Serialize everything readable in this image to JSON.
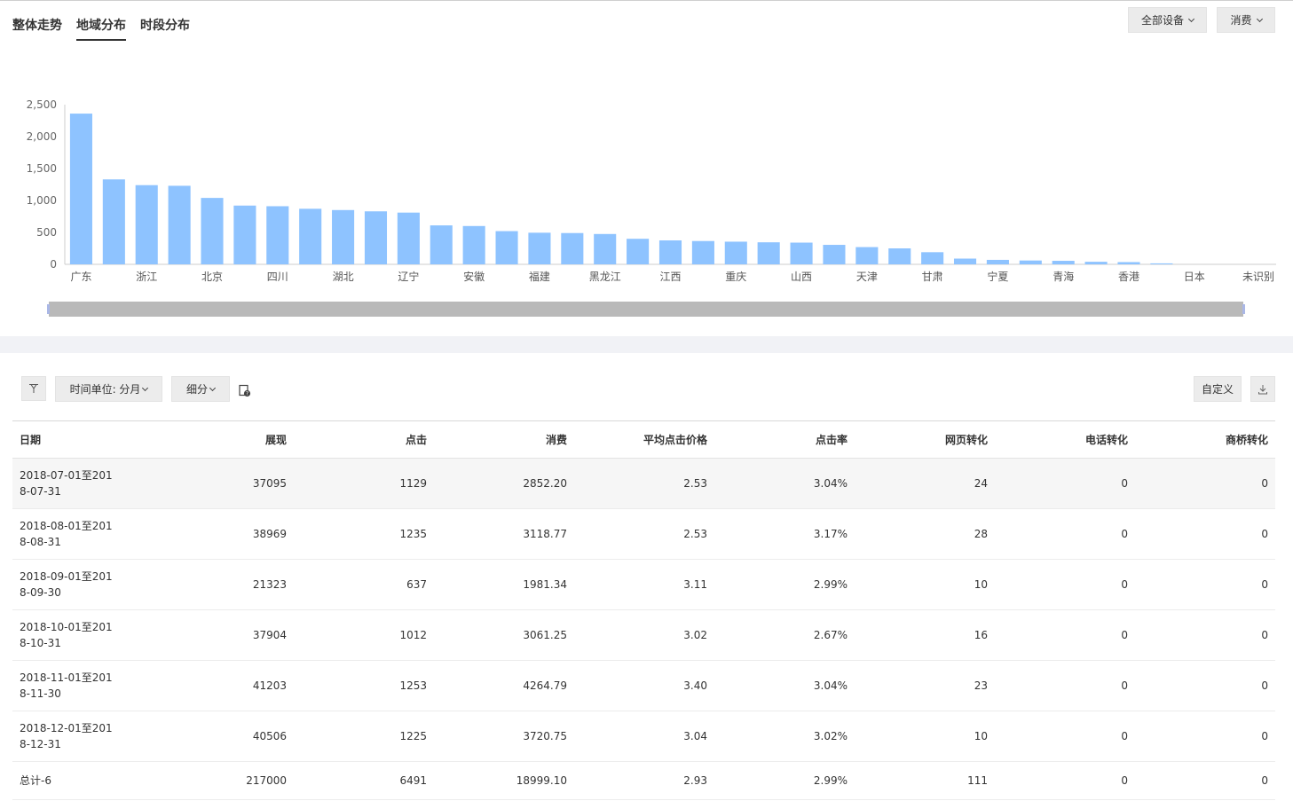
{
  "tabs": [
    {
      "label": "整体走势"
    },
    {
      "label": "地域分布"
    },
    {
      "label": "时段分布"
    }
  ],
  "filters": {
    "device_label": "全部设备",
    "metric_label": "消费"
  },
  "chart_data": {
    "type": "bar",
    "color": "#8ec3ff",
    "ylim": [
      0,
      2500
    ],
    "yticks": [
      "0",
      "500",
      "1,000",
      "1,500",
      "2,000",
      "2,500"
    ],
    "ytick_values": [
      0,
      500,
      1000,
      1500,
      2000,
      2500
    ],
    "x_labels_shown": [
      "广东",
      "浙江",
      "北京",
      "四川",
      "湖北",
      "辽宁",
      "安徽",
      "福建",
      "黑龙江",
      "江西",
      "重庆",
      "山西",
      "天津",
      "甘肃",
      "宁夏",
      "青海",
      "香港",
      "日本",
      "未识别"
    ],
    "values": [
      2360,
      1330,
      1240,
      1230,
      1040,
      920,
      910,
      870,
      850,
      830,
      810,
      610,
      600,
      520,
      495,
      490,
      475,
      400,
      375,
      365,
      355,
      345,
      340,
      305,
      270,
      250,
      190,
      90,
      70,
      60,
      55,
      40,
      35,
      15,
      0,
      0,
      0
    ],
    "label_every": 2
  },
  "toolbar": {
    "time_unit_label": "时间单位: 分月",
    "split_label": "细分",
    "custom_label": "自定义"
  },
  "table": {
    "columns": [
      "日期",
      "展现",
      "点击",
      "消费",
      "平均点击价格",
      "点击率",
      "网页转化",
      "电话转化",
      "商桥转化"
    ],
    "rows": [
      [
        "2018-07-01至2018-07-31",
        "37095",
        "1129",
        "2852.20",
        "2.53",
        "3.04%",
        "24",
        "0",
        "0"
      ],
      [
        "2018-08-01至2018-08-31",
        "38969",
        "1235",
        "3118.77",
        "2.53",
        "3.17%",
        "28",
        "0",
        "0"
      ],
      [
        "2018-09-01至2018-09-30",
        "21323",
        "637",
        "1981.34",
        "3.11",
        "2.99%",
        "10",
        "0",
        "0"
      ],
      [
        "2018-10-01至2018-10-31",
        "37904",
        "1012",
        "3061.25",
        "3.02",
        "2.67%",
        "16",
        "0",
        "0"
      ],
      [
        "2018-11-01至2018-11-30",
        "41203",
        "1253",
        "4264.79",
        "3.40",
        "3.04%",
        "23",
        "0",
        "0"
      ],
      [
        "2018-12-01至2018-12-31",
        "40506",
        "1225",
        "3720.75",
        "3.04",
        "3.02%",
        "10",
        "0",
        "0"
      ]
    ],
    "total": [
      "总计-6",
      "217000",
      "6491",
      "18999.10",
      "2.93",
      "2.99%",
      "111",
      "0",
      "0"
    ]
  }
}
